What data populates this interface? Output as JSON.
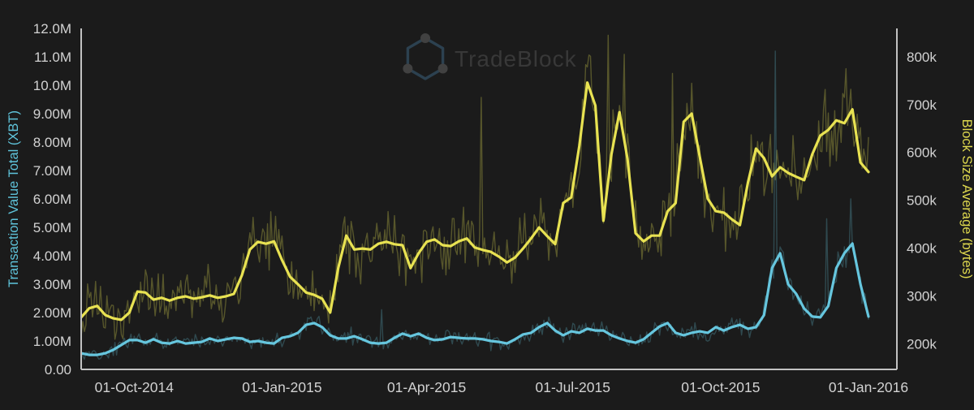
{
  "watermark": {
    "text": "TradeBlock"
  },
  "colors": {
    "background": "#1b1b1b",
    "axis_line": "#c2c2c2",
    "tick_label": "#d2d2d2",
    "left_title": "#5fc3da",
    "right_title": "#ded84e",
    "tx_line": "#66c6de",
    "tx_raw": "rgba(102,198,222,0.27)",
    "block_line": "#e8e252",
    "block_raw": "rgba(230,224,82,0.30)",
    "watermark_text": "#383838",
    "watermark_hex": "#2c4150",
    "watermark_dot": "#414141"
  },
  "chart_data": {
    "type": "line",
    "title": "",
    "start_date": "2014-08-29",
    "end_date": "2016-01-01",
    "interval_days": 5,
    "x_ticks": [
      {
        "label": "01-Oct-2014",
        "date": "2014-10-01"
      },
      {
        "label": "01-Jan-2015",
        "date": "2015-01-01"
      },
      {
        "label": "01-Apr-2015",
        "date": "2015-04-01"
      },
      {
        "label": "01-Jul-2015",
        "date": "2015-07-01"
      },
      {
        "label": "01-Oct-2015",
        "date": "2015-10-01"
      },
      {
        "label": "01-Jan-2016",
        "date": "2016-01-01"
      }
    ],
    "left_axis": {
      "label": "Transaction Value Total (XBT)",
      "unit": "XBT, millions",
      "range": [
        0,
        12
      ],
      "tick_labels_bottom_to_top": [
        "0.00",
        "1.00M",
        "2.00M",
        "3.00M",
        "4.00M",
        "5.00M",
        "6.00M",
        "7.00M",
        "8.00M",
        "9.00M",
        "10.0M",
        "11.0M",
        "12.0M"
      ]
    },
    "right_axis": {
      "label": "Block Size Average (bytes)",
      "unit": "bytes, thousands",
      "approx_range": [
        147,
        858
      ],
      "ticks": [
        {
          "label": "200k",
          "value": 200
        },
        {
          "label": "300k",
          "value": 300
        },
        {
          "label": "400k",
          "value": 400
        },
        {
          "label": "500k",
          "value": 500
        },
        {
          "label": "600k",
          "value": 600
        },
        {
          "label": "700k",
          "value": 700
        },
        {
          "label": "800k",
          "value": 800
        }
      ]
    },
    "grid": false,
    "legend": "none",
    "series": [
      {
        "name": "Transaction Value Total (XBT)",
        "axis": "left",
        "style": "smoothed 7-day average",
        "unit": "millions XBT",
        "values": [
          0.57,
          0.51,
          0.51,
          0.57,
          0.69,
          0.86,
          1.03,
          1.03,
          0.94,
          1.06,
          0.94,
          0.91,
          1.0,
          0.91,
          0.94,
          0.97,
          1.09,
          1.0,
          1.06,
          1.11,
          1.09,
          0.97,
          1.0,
          0.94,
          0.91,
          1.11,
          1.17,
          1.29,
          1.57,
          1.63,
          1.49,
          1.2,
          1.09,
          1.09,
          1.17,
          1.06,
          0.94,
          0.91,
          0.94,
          1.11,
          1.26,
          1.17,
          1.26,
          1.11,
          1.03,
          1.06,
          1.14,
          1.11,
          1.09,
          1.09,
          1.06,
          1.0,
          0.97,
          0.91,
          1.06,
          1.23,
          1.29,
          1.49,
          1.63,
          1.37,
          1.2,
          1.34,
          1.29,
          1.43,
          1.37,
          1.37,
          1.2,
          1.09,
          1.0,
          0.94,
          1.06,
          1.29,
          1.51,
          1.63,
          1.29,
          1.2,
          1.29,
          1.34,
          1.29,
          1.49,
          1.37,
          1.49,
          1.57,
          1.43,
          1.49,
          1.91,
          3.57,
          4.09,
          3.0,
          2.66,
          2.14,
          1.86,
          1.83,
          2.23,
          3.57,
          4.09,
          4.43,
          3.0,
          1.86
        ]
      },
      {
        "name": "Block Size Average (bytes)",
        "axis": "right",
        "style": "smoothed 7-day average",
        "unit": "thousands of bytes",
        "values": [
          255,
          274,
          279,
          260,
          253,
          250,
          265,
          309,
          307,
          292,
          296,
          290,
          296,
          299,
          294,
          297,
          301,
          296,
          299,
          304,
          343,
          397,
          413,
          409,
          414,
          375,
          340,
          324,
          307,
          302,
          294,
          265,
          358,
          426,
          397,
          399,
          397,
          409,
          413,
          408,
          406,
          358,
          389,
          413,
          418,
          406,
          404,
          414,
          420,
          401,
          396,
          392,
          382,
          370,
          380,
          399,
          420,
          443,
          425,
          408,
          494,
          506,
          613,
          746,
          698,
          457,
          596,
          684,
          586,
          431,
          414,
          426,
          426,
          477,
          494,
          664,
          681,
          591,
          503,
          477,
          474,
          460,
          448,
          537,
          608,
          588,
          550,
          569,
          557,
          549,
          542,
          596,
          635,
          647,
          667,
          661,
          690,
          579,
          559
        ]
      }
    ],
    "raw_overlay": {
      "note": "faint jagged daily series drawn behind each smoothed line",
      "seed": 42,
      "block_amp_base": 28,
      "block_amp_scale": 0.13,
      "tx_amp_base": 0.22,
      "tx_amp_scale": 0.13,
      "block_spikes": {
        "249": 715,
        "328": 845,
        "338": 805,
        "368": 765,
        "476": 775
      },
      "tx_spikes": {
        "187": 2.1,
        "432": 11.2,
        "464": 5.3,
        "479": 6.0
      }
    }
  }
}
